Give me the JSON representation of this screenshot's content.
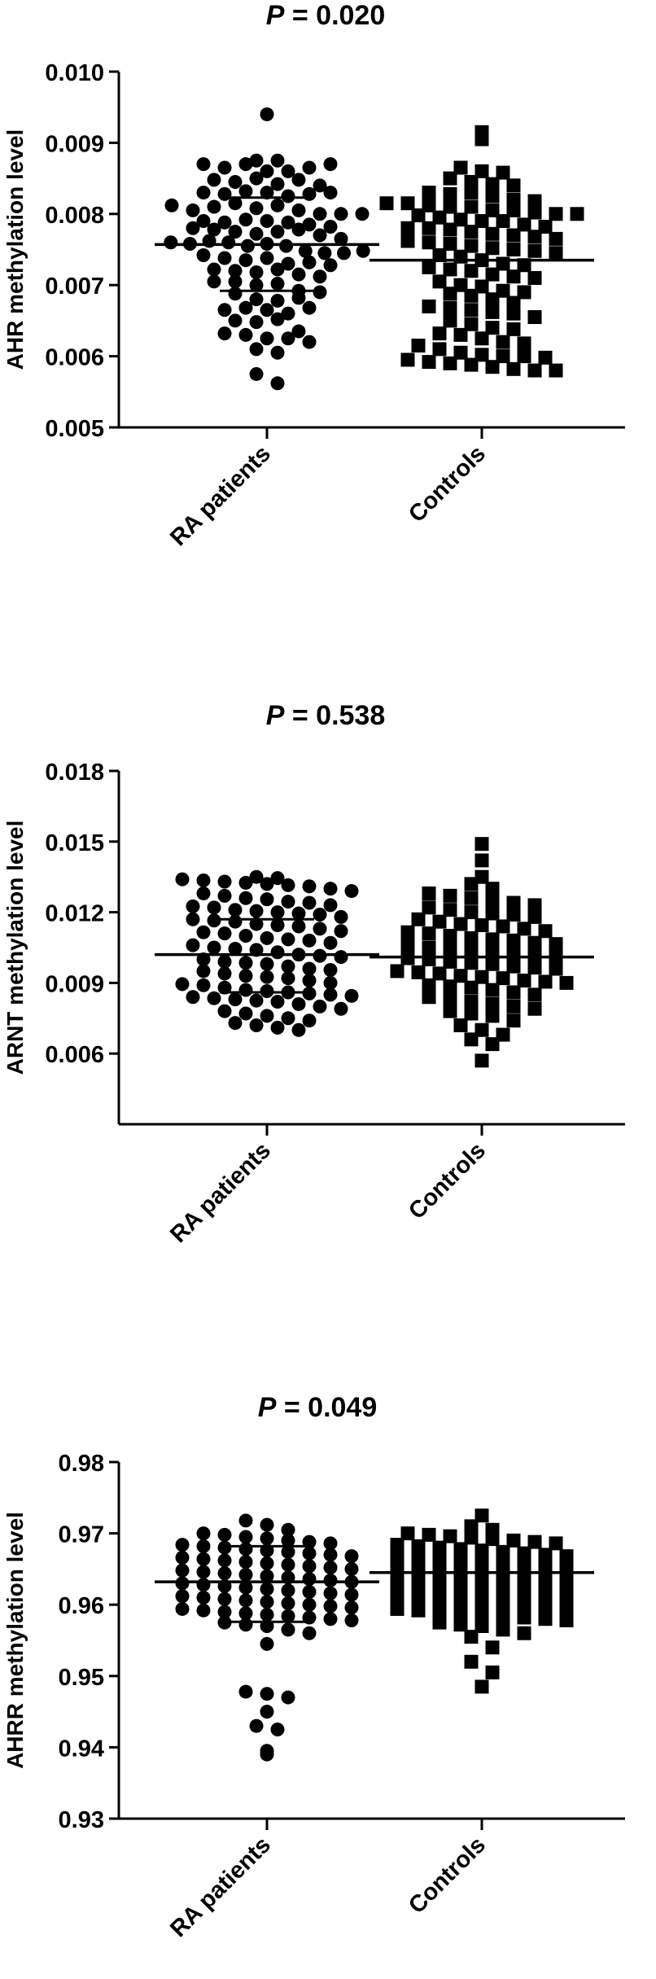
{
  "chart_data": [
    {
      "type": "scatter",
      "title_italic": "P",
      "title_rest": " = 0.020",
      "ylabel": "AHR methylation level",
      "xlabel": "",
      "categories": [
        "RA patients",
        "Controls"
      ],
      "ylim": [
        0.005,
        0.01
      ],
      "ytick_labels": [
        "0.005",
        "0.006",
        "0.007",
        "0.008",
        "0.009",
        "0.010"
      ],
      "grid": false,
      "markers": [
        "circle",
        "square"
      ],
      "mean": [
        0.00757,
        0.00735
      ],
      "sd_upper": [
        0.00823,
        null
      ],
      "sd_lower": [
        0.00692,
        null
      ],
      "series": [
        {
          "values": [
            0.0094,
            0.00875,
            0.0087,
            0.00865,
            0.0087,
            0.0086,
            0.0086,
            0.00865,
            0.0087,
            0.00875,
            0.00848,
            0.00845,
            0.0085,
            0.00842,
            0.00848,
            0.0084,
            0.0083,
            0.00828,
            0.00832,
            0.0083,
            0.00825,
            0.00828,
            0.0083,
            0.00812,
            0.00805,
            0.0081,
            0.00815,
            0.00808,
            0.00812,
            0.00805,
            0.008,
            0.008,
            0.008,
            0.0079,
            0.00788,
            0.00792,
            0.0079,
            0.00788,
            0.00785,
            0.0078,
            0.00778,
            0.00782,
            0.00775,
            0.00772,
            0.00775,
            0.00778,
            0.0077,
            0.00765,
            0.0076,
            0.00758,
            0.00762,
            0.0076,
            0.00755,
            0.00758,
            0.00755,
            0.00748,
            0.00745,
            0.00745,
            0.00748,
            0.00742,
            0.00738,
            0.00735,
            0.00738,
            0.0073,
            0.00732,
            0.00728,
            0.00722,
            0.0072,
            0.00718,
            0.00722,
            0.00715,
            0.00712,
            0.00705,
            0.00705,
            0.007,
            0.00702,
            0.00692,
            0.0069,
            0.00688,
            0.0068,
            0.00678,
            0.00682,
            0.00665,
            0.00668,
            0.00665,
            0.0066,
            0.00668,
            0.0065,
            0.00648,
            0.00652,
            0.00635,
            0.00632,
            0.0063,
            0.00625,
            0.00625,
            0.0062,
            0.0061,
            0.00605,
            0.00575,
            0.00562
          ]
        },
        {
          "values": [
            0.00915,
            0.00905,
            0.00865,
            0.0086,
            0.00858,
            0.0085,
            0.00845,
            0.00842,
            0.0084,
            0.0083,
            0.00828,
            0.0083,
            0.00825,
            0.0082,
            0.00818,
            0.00815,
            0.00815,
            0.00812,
            0.0081,
            0.0081,
            0.00805,
            0.00805,
            0.00802,
            0.008,
            0.008,
            0.00798,
            0.00795,
            0.00792,
            0.0079,
            0.0079,
            0.00785,
            0.00782,
            0.0078,
            0.0078,
            0.00778,
            0.00775,
            0.00772,
            0.0077,
            0.00768,
            0.00765,
            0.00762,
            0.0076,
            0.00758,
            0.00755,
            0.00752,
            0.0075,
            0.00748,
            0.00745,
            0.00742,
            0.0074,
            0.00735,
            0.0073,
            0.00728,
            0.00725,
            0.00722,
            0.0072,
            0.00715,
            0.00712,
            0.0071,
            0.00705,
            0.007,
            0.00698,
            0.00692,
            0.0069,
            0.00688,
            0.00685,
            0.0068,
            0.00675,
            0.0067,
            0.00668,
            0.00665,
            0.00662,
            0.0066,
            0.00655,
            0.0065,
            0.00645,
            0.0064,
            0.00638,
            0.00632,
            0.0063,
            0.00625,
            0.0062,
            0.00618,
            0.00615,
            0.0061,
            0.00605,
            0.00602,
            0.006,
            0.006,
            0.00598,
            0.00595,
            0.00592,
            0.0059,
            0.00588,
            0.00585,
            0.00582,
            0.0058,
            0.0058
          ]
        }
      ]
    },
    {
      "type": "scatter",
      "title_italic": "P",
      "title_rest": " = 0.538",
      "ylabel": "ARNT methylation level",
      "xlabel": "",
      "categories": [
        "RA patients",
        "Controls"
      ],
      "ylim": [
        0.003,
        0.018
      ],
      "ytick_values": [
        0.006,
        0.009,
        0.012,
        0.015,
        0.018
      ],
      "ytick_labels": [
        "0.006",
        "0.009",
        "0.012",
        "0.015",
        "0.018"
      ],
      "grid": false,
      "markers": [
        "circle",
        "square"
      ],
      "mean": [
        0.0102,
        0.0101
      ],
      "sd_upper": [
        0.0117,
        null
      ],
      "sd_lower": [
        0.0086,
        null
      ],
      "series": [
        {
          "values": [
            0.0135,
            0.01345,
            0.0134,
            0.01335,
            0.0133,
            0.01325,
            0.0132,
            0.01315,
            0.0131,
            0.013,
            0.0129,
            0.0128,
            0.0127,
            0.0126,
            0.01255,
            0.01245,
            0.0124,
            0.0123,
            0.01225,
            0.0122,
            0.0121,
            0.01205,
            0.012,
            0.01195,
            0.0119,
            0.0118,
            0.0117,
            0.01165,
            0.0116,
            0.0115,
            0.01145,
            0.0114,
            0.0113,
            0.0112,
            0.01115,
            0.0111,
            0.011,
            0.0109,
            0.01085,
            0.0108,
            0.0107,
            0.0106,
            0.0105,
            0.01045,
            0.0104,
            0.0103,
            0.0102,
            0.01015,
            0.0101,
            0.01,
            0.0099,
            0.00985,
            0.0098,
            0.0097,
            0.0096,
            0.00955,
            0.0095,
            0.0094,
            0.0093,
            0.00925,
            0.0092,
            0.0091,
            0.009,
            0.00895,
            0.0089,
            0.0088,
            0.0087,
            0.00865,
            0.0086,
            0.00855,
            0.0085,
            0.00845,
            0.0084,
            0.00835,
            0.0083,
            0.00825,
            0.0082,
            0.0081,
            0.008,
            0.0079,
            0.0078,
            0.0077,
            0.0076,
            0.0075,
            0.0074,
            0.0073,
            0.0072,
            0.0071,
            0.007
          ]
        },
        {
          "values": [
            0.0149,
            0.0142,
            0.0135,
            0.0132,
            0.013,
            0.0128,
            0.0127,
            0.0126,
            0.0125,
            0.0124,
            0.0123,
            0.0122,
            0.0121,
            0.012,
            0.01195,
            0.0119,
            0.0118,
            0.0117,
            0.0116,
            0.0115,
            0.01145,
            0.0114,
            0.0113,
            0.0112,
            0.01115,
            0.0111,
            0.011,
            0.0109,
            0.01085,
            0.0108,
            0.0107,
            0.01065,
            0.0106,
            0.0105,
            0.01045,
            0.0104,
            0.0103,
            0.01025,
            0.0102,
            0.0101,
            0.01005,
            0.01,
            0.0099,
            0.00985,
            0.0098,
            0.0097,
            0.00965,
            0.0096,
            0.0095,
            0.00945,
            0.0094,
            0.0093,
            0.00925,
            0.0092,
            0.0091,
            0.00905,
            0.009,
            0.0089,
            0.00885,
            0.0088,
            0.0087,
            0.0086,
            0.0085,
            0.0084,
            0.0083,
            0.0082,
            0.0081,
            0.008,
            0.0079,
            0.0078,
            0.0077,
            0.0076,
            0.0074,
            0.0072,
            0.007,
            0.0068,
            0.0066,
            0.0064,
            0.0057
          ]
        }
      ]
    },
    {
      "type": "scatter",
      "title_italic": "P",
      "title_rest": " = 0.049",
      "ylabel": "AHRR methylation level",
      "xlabel": "",
      "categories": [
        "RA patients",
        "Controls"
      ],
      "ylim": [
        0.93,
        0.98
      ],
      "ytick_labels": [
        "0.93",
        "0.94",
        "0.95",
        "0.96",
        "0.97",
        "0.98"
      ],
      "grid": false,
      "markers": [
        "circle",
        "square"
      ],
      "mean": [
        0.9632,
        0.9645
      ],
      "sd_upper": [
        0.9682,
        null
      ],
      "sd_lower": [
        0.9576,
        null
      ],
      "series": [
        {
          "values": [
            0.9718,
            0.9712,
            0.9705,
            0.97,
            0.9698,
            0.9695,
            0.9693,
            0.969,
            0.9688,
            0.9686,
            0.9684,
            0.9682,
            0.968,
            0.9678,
            0.9676,
            0.9674,
            0.9672,
            0.967,
            0.9668,
            0.9666,
            0.9664,
            0.9662,
            0.966,
            0.9658,
            0.9656,
            0.9654,
            0.9652,
            0.965,
            0.9648,
            0.9646,
            0.9644,
            0.9642,
            0.964,
            0.9638,
            0.9636,
            0.9634,
            0.9632,
            0.963,
            0.9628,
            0.9626,
            0.9624,
            0.9622,
            0.962,
            0.9618,
            0.9616,
            0.9614,
            0.9612,
            0.961,
            0.9608,
            0.9606,
            0.9604,
            0.9602,
            0.96,
            0.9598,
            0.9596,
            0.9594,
            0.9592,
            0.959,
            0.9588,
            0.9586,
            0.9584,
            0.9582,
            0.958,
            0.9578,
            0.9575,
            0.9572,
            0.957,
            0.9565,
            0.956,
            0.9545,
            0.9478,
            0.9475,
            0.947,
            0.945,
            0.943,
            0.9425,
            0.9395,
            0.939
          ]
        },
        {
          "values": [
            0.9725,
            0.971,
            0.9705,
            0.97,
            0.9698,
            0.9696,
            0.9694,
            0.9692,
            0.969,
            0.9688,
            0.9686,
            0.9684,
            0.9682,
            0.968,
            0.9678,
            0.9676,
            0.9674,
            0.9672,
            0.967,
            0.9668,
            0.9666,
            0.9664,
            0.9662,
            0.966,
            0.9658,
            0.9656,
            0.9654,
            0.9652,
            0.965,
            0.9648,
            0.9646,
            0.9644,
            0.9642,
            0.964,
            0.9638,
            0.9636,
            0.9634,
            0.9632,
            0.963,
            0.9628,
            0.9626,
            0.9624,
            0.9622,
            0.962,
            0.9618,
            0.9616,
            0.9614,
            0.9612,
            0.961,
            0.9608,
            0.9606,
            0.9604,
            0.9602,
            0.96,
            0.9598,
            0.9596,
            0.9594,
            0.9592,
            0.959,
            0.9588,
            0.9586,
            0.9584,
            0.9582,
            0.958,
            0.9578,
            0.9575,
            0.9572,
            0.957,
            0.9565,
            0.956,
            0.9555,
            0.954,
            0.952,
            0.9505,
            0.9485
          ]
        }
      ]
    }
  ]
}
